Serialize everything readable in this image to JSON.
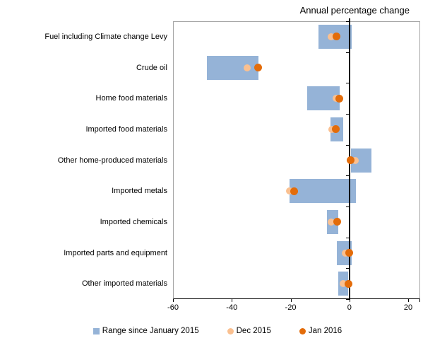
{
  "chart_data": {
    "type": "bar",
    "subtype": "range-bars-with-dot-markers",
    "title": "Annual percentage change",
    "xlabel": "",
    "ylabel": "",
    "xlim": [
      -60,
      24
    ],
    "xticks": [
      -60,
      -40,
      -20,
      0,
      20
    ],
    "xticklabels": [
      "-60",
      "-40",
      "-20",
      "0",
      "20"
    ],
    "grid": "off",
    "legend_position": "bottom",
    "categories": [
      "Fuel including Climate change Levy",
      "Crude oil",
      "Home food materials",
      "Imported food materials",
      "Other home-produced materials",
      "Imported metals",
      "Imported chemicals",
      "Imported parts and equipment",
      "Other imported materials"
    ],
    "series": [
      {
        "name": "Range since January 2015",
        "marker": "bar-range",
        "color": "#95B3D7",
        "ranges": [
          [
            -10.5,
            0.8
          ],
          [
            -48.4,
            -30.9
          ],
          [
            -14.3,
            -3.3
          ],
          [
            -6.4,
            -2.1
          ],
          [
            0.5,
            7.5
          ],
          [
            -20.4,
            2.3
          ],
          [
            -7.7,
            -3.8
          ],
          [
            -4.2,
            0.9
          ],
          [
            -3.7,
            -0.5
          ]
        ]
      },
      {
        "name": "Dec 2015",
        "marker": "circle",
        "color": "#FAC090",
        "values": [
          -6.3,
          -34.7,
          -4.6,
          -6.0,
          2.1,
          -20.4,
          -6.3,
          -1.5,
          -2.1
        ]
      },
      {
        "name": "Jan 2016",
        "marker": "circle",
        "color": "#E36C0A",
        "values": [
          -4.3,
          -31.1,
          -3.4,
          -4.6,
          0.5,
          -18.8,
          -4.2,
          -0.1,
          -0.4
        ]
      }
    ],
    "axis_colors": {
      "frame": "#a6a6a6",
      "axis": "#000000",
      "zero_line": "#000000"
    }
  }
}
